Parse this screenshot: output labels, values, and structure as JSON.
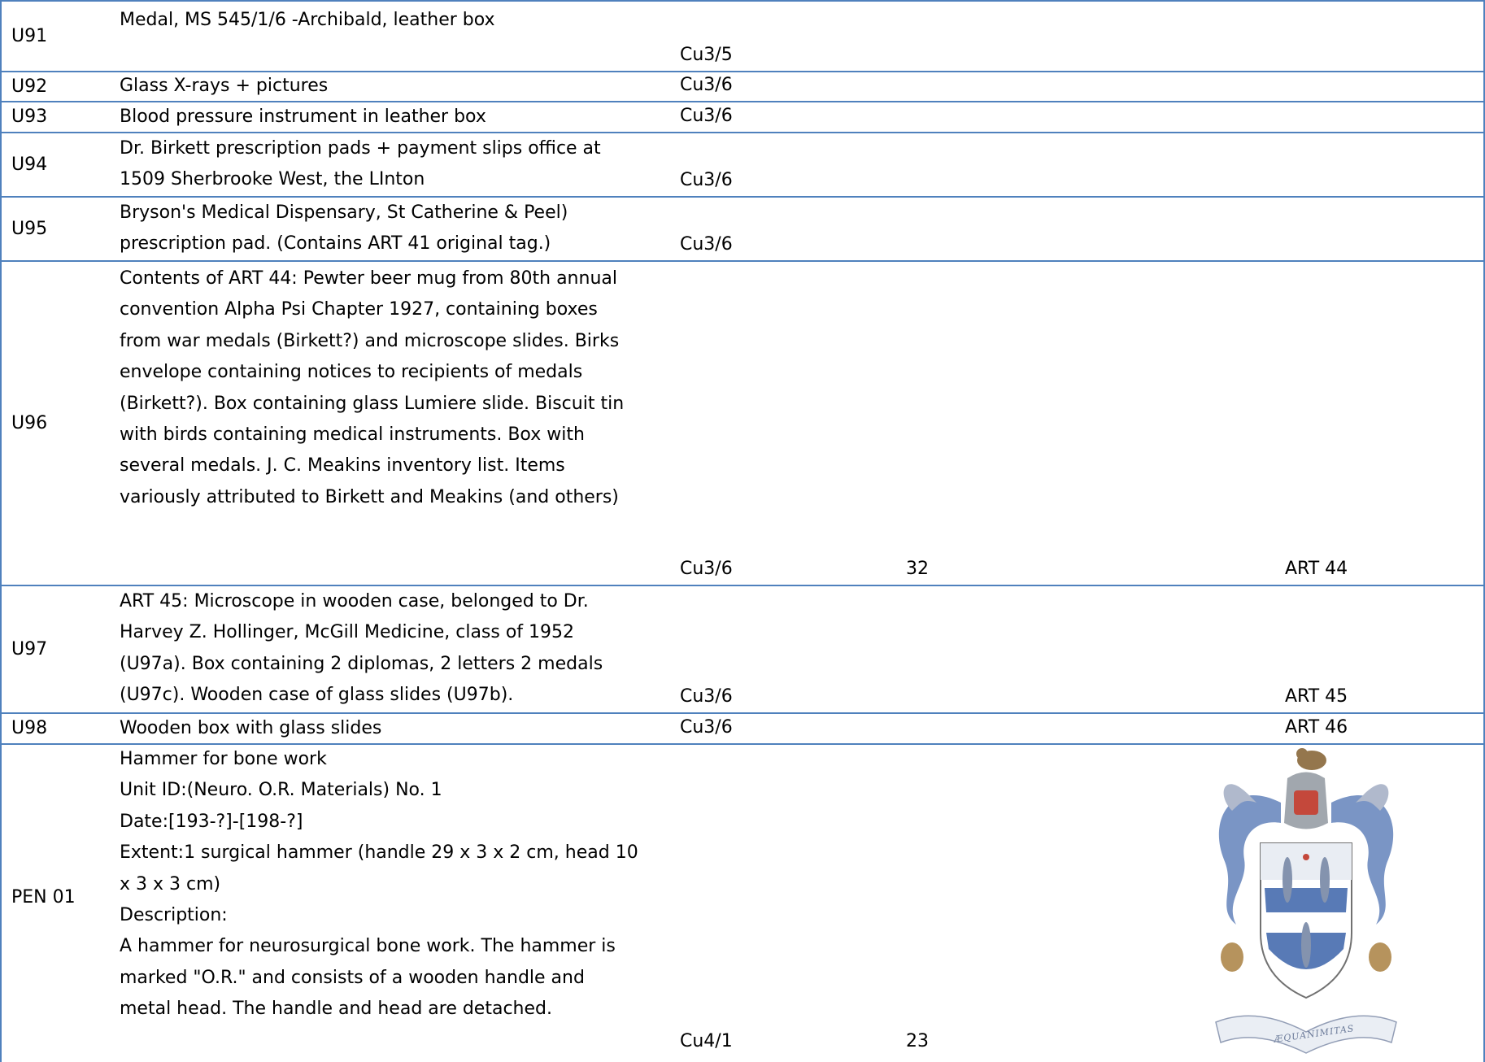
{
  "rows": [
    {
      "id": "U91",
      "desc": "Medal, MS 545/1/6 -Archibald, leather box",
      "loc": "Cu3/5",
      "num": "",
      "art": ""
    },
    {
      "id": "U92",
      "desc": "Glass X-rays + pictures",
      "loc": "Cu3/6",
      "num": "",
      "art": ""
    },
    {
      "id": "U93",
      "desc": "Blood pressure instrument in leather box",
      "loc": "Cu3/6",
      "num": "",
      "art": ""
    },
    {
      "id": "U94",
      "desc": "Dr. Birkett prescription pads + payment slips office at\n1509 Sherbrooke West, the LInton",
      "loc": "Cu3/6",
      "num": "",
      "art": ""
    },
    {
      "id": "U95",
      "desc": "Bryson's Medical Dispensary, St Catherine & Peel)\nprescription pad. (Contains ART 41 original tag.)",
      "loc": "Cu3/6",
      "num": "",
      "art": ""
    },
    {
      "id": "U96",
      "desc": "Contents of ART 44: Pewter beer mug from 80th annual\nconvention Alpha Psi Chapter 1927, containing boxes\nfrom war medals (Birkett?) and microscope slides. Birks\nenvelope containing notices to recipients of medals\n(Birkett?). Box containing glass Lumiere slide. Biscuit tin\nwith birds containing medical instruments. Box with\nseveral medals. J. C. Meakins inventory list. Items\nvariously attributed to Birkett and Meakins (and others)",
      "loc": "Cu3/6",
      "num": "32",
      "art": "ART 44"
    },
    {
      "id": "U97",
      "desc": "ART 45: Microscope in wooden case, belonged to Dr.\nHarvey Z. Hollinger, McGill Medicine, class of 1952\n(U97a). Box containing 2 diplomas, 2 letters 2 medals\n(U97c). Wooden case of glass slides (U97b).",
      "loc": "Cu3/6",
      "num": "",
      "art": "ART 45"
    },
    {
      "id": "U98",
      "desc": "Wooden box with glass slides",
      "loc": "Cu3/6",
      "num": "",
      "art": "ART 46"
    },
    {
      "id": "PEN 01",
      "desc": "Hammer for bone work\nUnit ID:(Neuro. O.R. Materials) No. 1\nDate:[193-?]-[198-?]\nExtent:1 surgical hammer (handle 29 x 3 x 2 cm, head 10\nx 3 x 3 cm)\nDescription:\nA hammer for neurosurgical bone work. The hammer is\nmarked \"O.R.\" and consists of a wooden handle and\nmetal head. The handle and head are detached.",
      "loc": "Cu4/1",
      "num": "23",
      "art": ""
    }
  ],
  "crest": {
    "motto": "ÆQUANIMITAS"
  },
  "colors": {
    "grid": "#4f81bd",
    "crest_blue": "#4a6fb0",
    "crest_red": "#c0392b"
  }
}
